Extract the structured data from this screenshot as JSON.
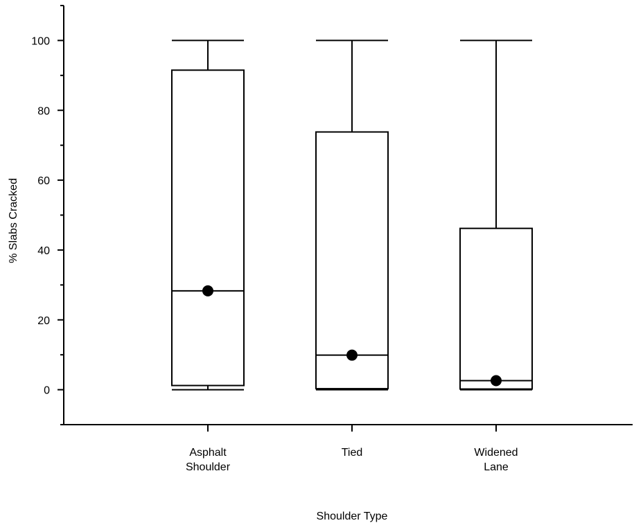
{
  "chart_data": {
    "type": "box",
    "xlabel": "Shoulder Type",
    "ylabel": "% Slabs Cracked",
    "ylim": [
      -10,
      110
    ],
    "yticks": [
      0,
      20,
      40,
      60,
      80,
      100
    ],
    "categories": [
      [
        "Asphalt",
        "Shoulder"
      ],
      [
        "Tied"
      ],
      [
        "Widened",
        "Lane"
      ]
    ],
    "boxes": [
      {
        "category": "Asphalt Shoulder",
        "whisker_low": 0,
        "q1": 1.2,
        "median": 28.3,
        "q3": 91.5,
        "whisker_high": 100,
        "mean": 28.3
      },
      {
        "category": "Tied",
        "whisker_low": 0,
        "q1": 0.3,
        "median": 9.9,
        "q3": 73.8,
        "whisker_high": 100,
        "mean": 9.9
      },
      {
        "category": "Widened Lane",
        "whisker_low": 0,
        "q1": 0.2,
        "median": 2.6,
        "q3": 46.2,
        "whisker_high": 100,
        "mean": 2.6
      }
    ],
    "grid": false,
    "legend": "none"
  }
}
